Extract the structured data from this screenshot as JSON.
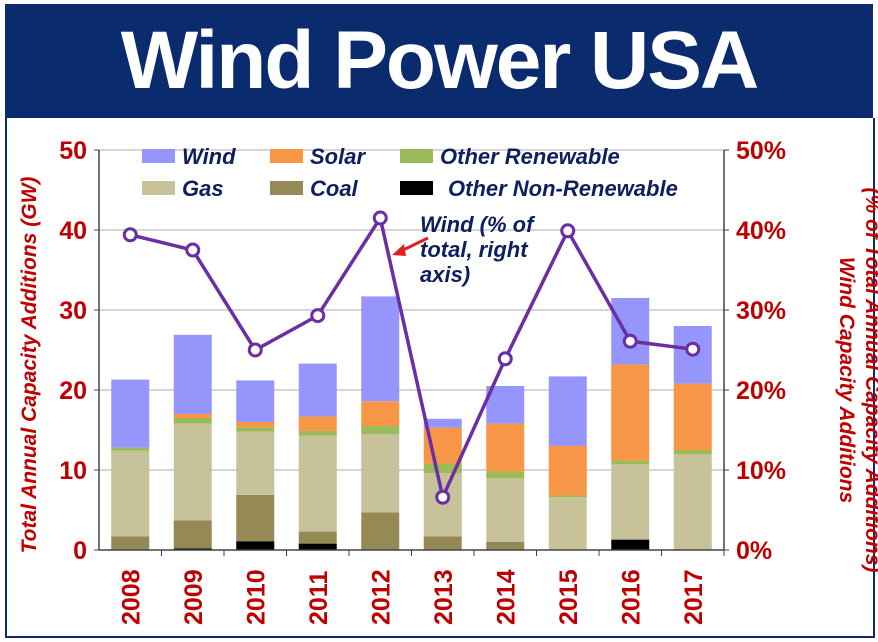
{
  "title": "Wind Power USA",
  "chart_data": {
    "type": "bar",
    "stacked": true,
    "categories": [
      "2008",
      "2009",
      "2010",
      "2011",
      "2012",
      "2013",
      "2014",
      "2015",
      "2016",
      "2017"
    ],
    "series": [
      {
        "name": "Other Non-Renewable",
        "color": "#000000",
        "values": [
          0,
          0.2,
          1.1,
          0.8,
          0,
          0,
          0,
          0,
          1.3,
          0
        ]
      },
      {
        "name": "Coal",
        "color": "#958a55",
        "values": [
          1.7,
          3.5,
          5.8,
          1.5,
          4.7,
          1.7,
          1.0,
          0,
          0,
          0
        ]
      },
      {
        "name": "Gas",
        "color": "#c8c29a",
        "values": [
          10.7,
          12.1,
          7.9,
          12.0,
          9.8,
          7.9,
          8.0,
          6.6,
          9.4,
          12.0
        ]
      },
      {
        "name": "Other Renewable",
        "color": "#9bbb59",
        "values": [
          0.4,
          0.7,
          0.5,
          0.6,
          1.0,
          1.2,
          0.8,
          0.2,
          0.5,
          0.5
        ]
      },
      {
        "name": "Solar",
        "color": "#f79646",
        "values": [
          0,
          0.5,
          0.7,
          1.8,
          3.1,
          4.5,
          6.0,
          6.2,
          12.0,
          8.3
        ]
      },
      {
        "name": "Wind",
        "color": "#9595fb",
        "values": [
          8.5,
          9.9,
          5.2,
          6.6,
          13.1,
          1.1,
          4.7,
          8.7,
          8.3,
          7.2
        ]
      }
    ],
    "line_series": {
      "name": "Wind (% of total, right axis)",
      "color": "#6a2fa0",
      "axis": "right",
      "values": [
        39.4,
        37.5,
        25.0,
        29.3,
        41.5,
        6.6,
        23.9,
        39.9,
        26.1,
        25.1
      ]
    },
    "legend": {
      "placement": "top",
      "order": [
        "Wind",
        "Solar",
        "Other Renewable",
        "Gas",
        "Coal",
        "Other Non-Renewable"
      ]
    },
    "annotation": [
      "Wind (% of",
      "total, right",
      "axis)"
    ],
    "ylabel": "Total Annual Capacity Additions (GW)",
    "ylabel_right": [
      "Wind Capacity Additions",
      "(% of Total Annual Capacity Additions)"
    ],
    "ylim": [
      0,
      50
    ],
    "yticks": [
      "0",
      "10",
      "20",
      "30",
      "40",
      "50"
    ],
    "ylim_right": [
      0,
      50
    ],
    "yticks_right": [
      "0%",
      "10%",
      "20%",
      "30%",
      "40%",
      "50%"
    ],
    "grid": true,
    "axis_color": "#c00000",
    "text_color": "#0d1f5c"
  }
}
